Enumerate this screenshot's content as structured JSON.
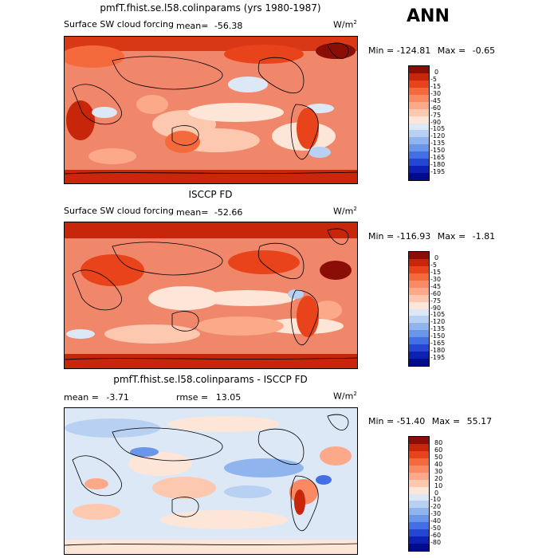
{
  "corner_title": "ANN",
  "panels": [
    {
      "title": "pmfT.fhist.se.l58.colinparams (yrs 1980-1987)",
      "variable": "Surface SW cloud forcing",
      "mean_label": "mean=",
      "mean_value": "-56.38",
      "units_base": "W/m",
      "units_exp": "2",
      "min_label": "Min =",
      "min_value": "-124.81",
      "max_label": "Max =",
      "max_value": "-0.65",
      "colorbar": {
        "levels": [
          "0",
          "-5",
          "-15",
          "-30",
          "-45",
          "-60",
          "-75",
          "-90",
          "-105",
          "-120",
          "-135",
          "-150",
          "-165",
          "-180",
          "-195"
        ],
        "colors": [
          "#8b0e06",
          "#c8260a",
          "#e8431a",
          "#f46a3d",
          "#f98a63",
          "#fca98a",
          "#fdc8b0",
          "#fde6d8",
          "#dde8f6",
          "#b8d0f2",
          "#8fb4ee",
          "#6a96ea",
          "#436fe4",
          "#2546d2",
          "#0c21b4",
          "#000c8a"
        ]
      }
    },
    {
      "title": "ISCCP FD",
      "variable": "Surface SW cloud forcing",
      "mean_label": "mean=",
      "mean_value": "-52.66",
      "units_base": "W/m",
      "units_exp": "2",
      "min_label": "Min =",
      "min_value": "-116.93",
      "max_label": "Max =",
      "max_value": "-1.81",
      "colorbar": {
        "levels": [
          "0",
          "-5",
          "-15",
          "-30",
          "-45",
          "-60",
          "-75",
          "-90",
          "-105",
          "-120",
          "-135",
          "-150",
          "-165",
          "-180",
          "-195"
        ],
        "colors": [
          "#8b0e06",
          "#c8260a",
          "#e8431a",
          "#f46a3d",
          "#f98a63",
          "#fca98a",
          "#fdc8b0",
          "#fde6d8",
          "#dde8f6",
          "#b8d0f2",
          "#8fb4ee",
          "#6a96ea",
          "#436fe4",
          "#2546d2",
          "#0c21b4",
          "#000c8a"
        ]
      }
    },
    {
      "title": "pmfT.fhist.se.l58.colinparams - ISCCP FD",
      "variable": "",
      "mean_label": "mean =",
      "mean_value": "-3.71",
      "rmse_label": "rmse =",
      "rmse_value": "13.05",
      "units_base": "W/m",
      "units_exp": "2",
      "min_label": "Min =",
      "min_value": "-51.40",
      "max_label": "Max =",
      "max_value": "55.17",
      "colorbar": {
        "levels": [
          "80",
          "60",
          "50",
          "40",
          "30",
          "20",
          "10",
          "0",
          "-10",
          "-20",
          "-30",
          "-40",
          "-50",
          "-60",
          "-80"
        ],
        "colors": [
          "#8b0e06",
          "#c8260a",
          "#e8431a",
          "#f46a3d",
          "#f98a63",
          "#fca98a",
          "#fdc8b0",
          "#fde6d8",
          "#dde8f6",
          "#b8d0f2",
          "#8fb4ee",
          "#6a96ea",
          "#436fe4",
          "#2546d2",
          "#0c21b4",
          "#000c8a"
        ]
      }
    }
  ],
  "chart_data": [
    {
      "type": "heatmap",
      "title": "pmfT.fhist.se.l58.colinparams (yrs 1980-1987)",
      "subtitle": "Surface SW cloud forcing",
      "units": "W/m2",
      "mean": -56.38,
      "min": -124.81,
      "max": -0.65,
      "levels": [
        0,
        -5,
        -15,
        -30,
        -45,
        -60,
        -75,
        -90,
        -105,
        -120,
        -135,
        -150,
        -165,
        -180,
        -195
      ]
    },
    {
      "type": "heatmap",
      "title": "ISCCP FD",
      "subtitle": "Surface SW cloud forcing",
      "units": "W/m2",
      "mean": -52.66,
      "min": -116.93,
      "max": -1.81,
      "levels": [
        0,
        -5,
        -15,
        -30,
        -45,
        -60,
        -75,
        -90,
        -105,
        -120,
        -135,
        -150,
        -165,
        -180,
        -195
      ]
    },
    {
      "type": "heatmap",
      "title": "pmfT.fhist.se.l58.colinparams - ISCCP FD",
      "units": "W/m2",
      "mean": -3.71,
      "rmse": 13.05,
      "min": -51.4,
      "max": 55.17,
      "levels": [
        80,
        60,
        50,
        40,
        30,
        20,
        10,
        0,
        -10,
        -20,
        -30,
        -40,
        -50,
        -60,
        -80
      ]
    }
  ]
}
